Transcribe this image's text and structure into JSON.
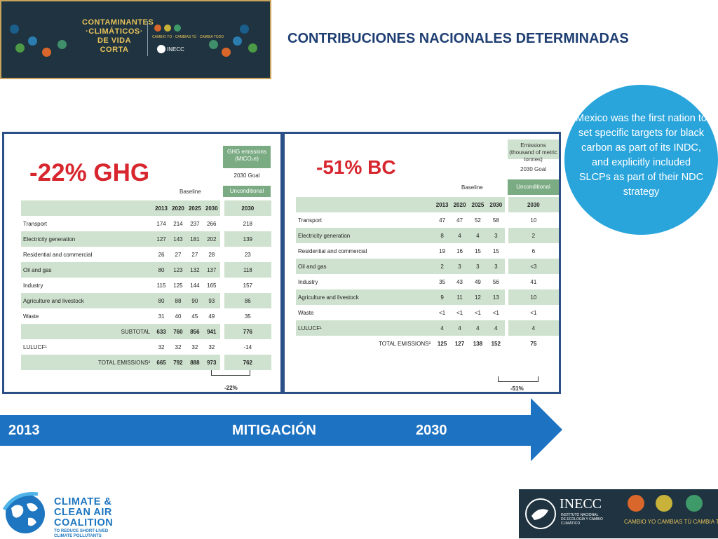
{
  "header": {
    "banner_line1": "CONTAMINANTES",
    "banner_line2": "·CLIMÁTICOS·",
    "banner_line3": "DE VIDA CORTA",
    "banner_slogan": "CAMBIO YO · CAMBIAS TÚ · CAMBIA TODO",
    "banner_inecc": "INECC",
    "page_title": "CONTRIBUCIONES NACIONALES DETERMINADAS"
  },
  "callout": "Mexico was the first nation to set specific targets for black carbon as part of its INDC, and explicitly included SLCPs as part of their NDC strategy",
  "ghg": {
    "headline": "-22% GHG",
    "unit_header": "GHG emissions (MtCO₂e)",
    "goal_label": "2030 Goal",
    "baseline_label": "Baseline",
    "unconditional_label": "Unconditional",
    "years": [
      "2013",
      "2020",
      "2025",
      "2030",
      "2030"
    ],
    "rows": [
      {
        "label": "Transport",
        "v": [
          "174",
          "214",
          "237",
          "266",
          "218"
        ]
      },
      {
        "label": "Electricity generation",
        "v": [
          "127",
          "143",
          "181",
          "202",
          "139"
        ]
      },
      {
        "label": "Residential and commercial",
        "v": [
          "26",
          "27",
          "27",
          "28",
          "23"
        ]
      },
      {
        "label": "Oil and gas",
        "v": [
          "80",
          "123",
          "132",
          "137",
          "118"
        ]
      },
      {
        "label": "Industry",
        "v": [
          "115",
          "125",
          "144",
          "165",
          "157"
        ]
      },
      {
        "label": "Agriculture and livestock",
        "v": [
          "80",
          "88",
          "90",
          "93",
          "86"
        ]
      },
      {
        "label": "Waste",
        "v": [
          "31",
          "40",
          "45",
          "49",
          "35"
        ]
      },
      {
        "label": "SUBTOTAL",
        "v": [
          "633",
          "760",
          "856",
          "941",
          "776"
        ]
      },
      {
        "label": "LULUCF¹",
        "v": [
          "32",
          "32",
          "32",
          "32",
          "-14"
        ]
      },
      {
        "label": "TOTAL EMISSIONS²",
        "v": [
          "665",
          "792",
          "888",
          "973",
          "762"
        ]
      }
    ],
    "reduction": "-22%"
  },
  "bc": {
    "headline": "-51% BC",
    "unit_header": "Emissions (thousand of metric tonnes)",
    "goal_label": "2030 Goal",
    "baseline_label": "Baseline",
    "unconditional_label": "Unconditional",
    "years": [
      "2013",
      "2020",
      "2025",
      "2030",
      "2030"
    ],
    "rows": [
      {
        "label": "Transport",
        "v": [
          "47",
          "47",
          "52",
          "58",
          "10"
        ]
      },
      {
        "label": "Electricity generation",
        "v": [
          "8",
          "4",
          "4",
          "3",
          "2"
        ]
      },
      {
        "label": "Residential and commercial",
        "v": [
          "19",
          "16",
          "15",
          "15",
          "6"
        ]
      },
      {
        "label": "Oil and gas",
        "v": [
          "2",
          "3",
          "3",
          "3",
          "<3"
        ]
      },
      {
        "label": "Industry",
        "v": [
          "35",
          "43",
          "49",
          "56",
          "41"
        ]
      },
      {
        "label": "Agriculture and livestock",
        "v": [
          "9",
          "11",
          "12",
          "13",
          "10"
        ]
      },
      {
        "label": "Waste",
        "v": [
          "<1",
          "<1",
          "<1",
          "<1",
          "<1"
        ]
      },
      {
        "label": "LULUCF¹",
        "v": [
          "4",
          "4",
          "4",
          "4",
          "4"
        ]
      },
      {
        "label": "TOTAL EMISSIONS²",
        "v": [
          "125",
          "127",
          "138",
          "152",
          "75"
        ]
      }
    ],
    "reduction": "-51%"
  },
  "timeline": {
    "start": "2013",
    "label": "MITIGACIÓN",
    "end": "2030",
    "color": "#1d72c2"
  },
  "footer": {
    "ccac_line1": "CLIMATE &",
    "ccac_line2": "CLEAN AIR",
    "ccac_line3": "COALITION",
    "ccac_line4": "TO REDUCE SHORT-LIVED",
    "ccac_line5": "CLIMATE POLLUTANTS",
    "inecc_name": "INECC",
    "inecc_sub": "INSTITUTO NACIONAL DE ECOLOGÍA Y CAMBIO CLIMÁTICO",
    "slogan": "CAMBIO YO  CAMBIAS TÚ  CAMBIA TODO"
  }
}
